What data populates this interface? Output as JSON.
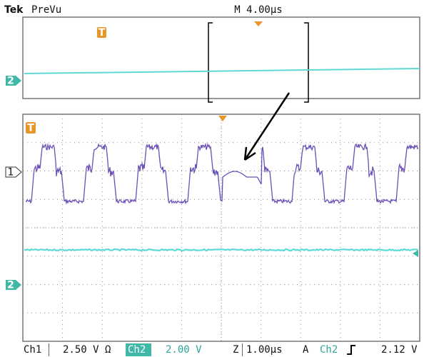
{
  "header": {
    "brand": "Tek",
    "mode": "PreVu",
    "timebase": "M 4.00µs"
  },
  "preview": {
    "trigger_marker": "T",
    "channel_marker": "2"
  },
  "main": {
    "trigger_marker": "T",
    "ch1_marker": "1",
    "ch2_marker": "2"
  },
  "status_bar": {
    "ch1_label": "Ch1",
    "ch1_scale": "2.50 V Ω",
    "ch2_label": "Ch2",
    "ch2_scale": "2.00 V",
    "zoom_label": "Z",
    "zoom_scale": "1.00µs",
    "trigger_mode": "A",
    "trigger_source": "Ch2",
    "trigger_level": "2.12 V"
  }
}
